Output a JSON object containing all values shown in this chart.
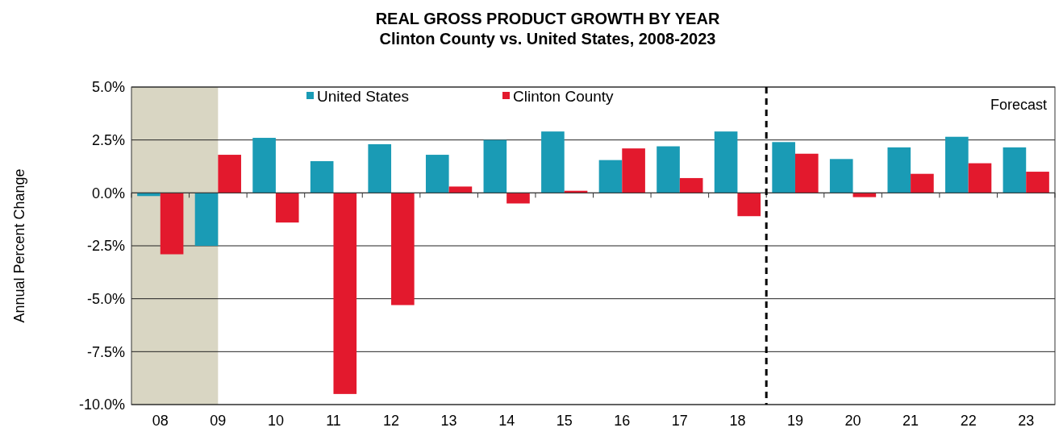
{
  "chart_data": {
    "type": "bar",
    "title": "REAL GROSS PRODUCT GROWTH BY YEAR",
    "subtitle": "Clinton County vs. United States, 2008-2023",
    "ylabel": "Annual Percent Change",
    "categories": [
      "08",
      "09",
      "10",
      "11",
      "12",
      "13",
      "14",
      "15",
      "16",
      "17",
      "18",
      "19",
      "20",
      "21",
      "22",
      "23"
    ],
    "series": [
      {
        "name": "United States",
        "color": "#1a9bb5",
        "values": [
          -0.15,
          -2.5,
          2.6,
          1.5,
          2.3,
          1.8,
          2.5,
          2.9,
          1.55,
          2.2,
          2.9,
          2.4,
          1.6,
          2.15,
          2.65,
          2.15
        ]
      },
      {
        "name": "Clinton County",
        "color": "#e3192d",
        "values": [
          -2.9,
          1.8,
          -1.4,
          -9.5,
          -5.3,
          0.3,
          -0.5,
          0.1,
          2.1,
          0.7,
          -1.1,
          1.85,
          -0.2,
          0.9,
          1.4,
          1.0
        ]
      }
    ],
    "ylim": [
      -10,
      5
    ],
    "yticks": [
      {
        "value": -10,
        "label": "-10.0%"
      },
      {
        "value": -7.5,
        "label": "-7.5%"
      },
      {
        "value": -5,
        "label": "-5.0%"
      },
      {
        "value": -2.5,
        "label": "-2.5%"
      },
      {
        "value": 0,
        "label": "0.0%"
      },
      {
        "value": 2.5,
        "label": "2.5%"
      },
      {
        "value": 5,
        "label": "5.0%"
      }
    ],
    "grid": "y",
    "legend": "top",
    "bands": [
      {
        "axis": "x",
        "from": "08",
        "to": "09",
        "color": "#d9d6c3"
      }
    ],
    "ref_lines": [
      {
        "axis": "x",
        "value": "19",
        "line_style": "dashed",
        "color": "#000000"
      }
    ],
    "annotations": [
      "Forecast"
    ]
  }
}
